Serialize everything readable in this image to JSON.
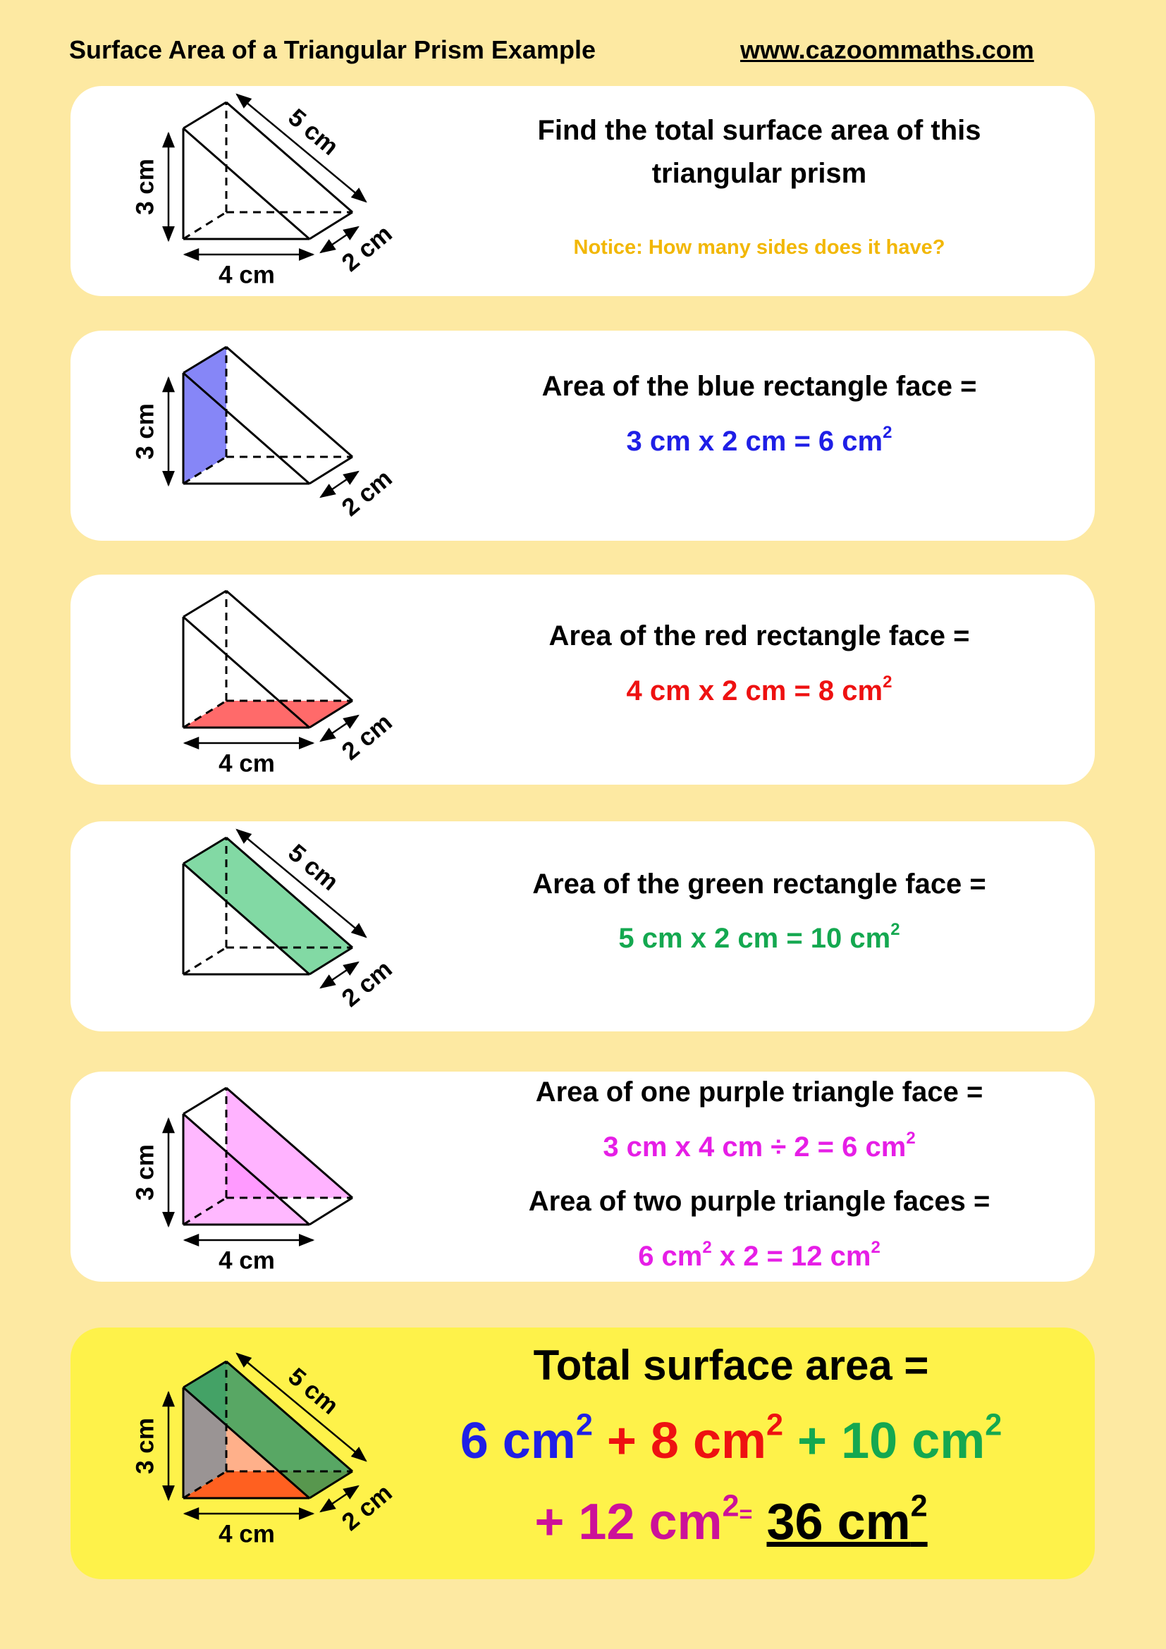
{
  "header": {
    "title": "Surface Area of a Triangular Prism Example",
    "url": "www.cazoommaths.com"
  },
  "colors": {
    "background": "#fde9a2",
    "blue": "#1f1fe6",
    "red": "#ee1111",
    "green": "#14a850",
    "purple": "#e61ee6",
    "magenta": "#cc1199",
    "notice": "#f2b705",
    "total_panel": "#fef24a"
  },
  "panels": [
    {
      "lines": [
        "Find the total surface area of this",
        "triangular prism"
      ],
      "notice": "Notice: How many sides does it have?",
      "dims": {
        "height": "3 cm",
        "width": "4 cm",
        "slant": "5 cm",
        "depth": "2 cm"
      }
    },
    {
      "question": "Area of the blue rectangle face =",
      "eq": "3 cm x 2 cm = 6 cm",
      "sup": "2",
      "dims": {
        "height": "3 cm",
        "depth": "2 cm"
      },
      "highlight": "#8686f7"
    },
    {
      "question": "Area of the red rectangle face =",
      "eq": "4 cm x 2 cm = 8 cm",
      "sup": "2",
      "dims": {
        "width": "4 cm",
        "depth": "2 cm"
      },
      "highlight": "#ff6a6a"
    },
    {
      "question": "Area of the green rectangle face =",
      "eq": "5 cm x 2 cm = 10 cm",
      "sup": "2",
      "dims": {
        "slant": "5 cm",
        "depth": "2 cm"
      },
      "highlight": "#82d9a4"
    },
    {
      "question": "Area of one purple triangle face =",
      "eq": "3 cm x 4 cm ÷ 2 = 6 cm",
      "sup": "2",
      "question2": "Area of two purple triangle faces =",
      "eq2a": "6 cm",
      "eq2b": " x 2  = 12 cm",
      "sup2": "2",
      "dims": {
        "height": "3 cm",
        "width": "4 cm"
      },
      "highlight": "#ffb0ff"
    },
    {
      "title": "Total surface area =",
      "terms": [
        {
          "text": "6 cm",
          "sup": "2",
          "color": "#1f1fe6"
        },
        {
          "text": " + 8 cm",
          "sup": "2",
          "color": "#ee1111"
        },
        {
          "text": " + 10 cm",
          "sup": "2",
          "color": "#14a850"
        }
      ],
      "last_term": "+ 12 cm",
      "last_sup": "2",
      "equals": "=",
      "answer": "36 cm",
      "answer_sup": "2",
      "dims": {
        "height": "3 cm",
        "width": "4 cm",
        "slant": "5 cm",
        "depth": "2 cm"
      }
    }
  ]
}
